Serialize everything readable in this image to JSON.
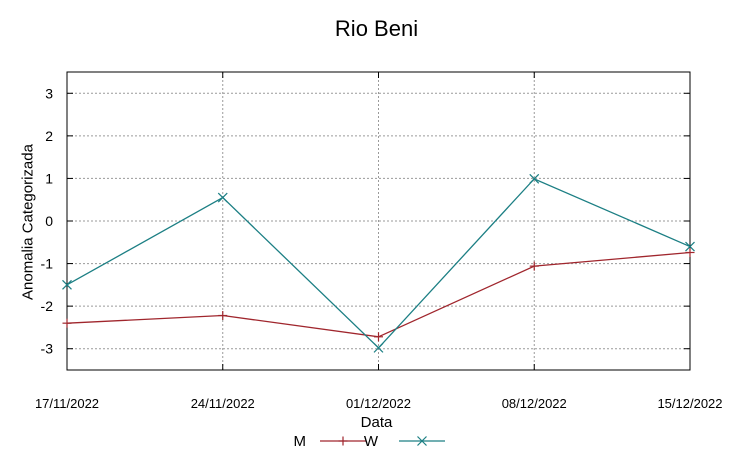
{
  "chart_data": {
    "type": "line",
    "title": "Rio Beni",
    "xlabel": "Data",
    "ylabel": "Anomalia Categorizada",
    "categories": [
      "17/11/2022",
      "24/11/2022",
      "01/12/2022",
      "08/12/2022",
      "15/12/2022"
    ],
    "ylim": [
      -3.5,
      3.5
    ],
    "yticks": [
      "-3",
      "-2",
      "-1",
      "0",
      "1",
      "2",
      "3"
    ],
    "grid": true,
    "legend_position": "bottom",
    "series": [
      {
        "name": "M",
        "color": "#a0262d",
        "marker": "plus",
        "values": [
          -2.4,
          -2.22,
          -2.72,
          -1.06,
          -0.74
        ]
      },
      {
        "name": "W",
        "color": "#1c7f84",
        "marker": "x",
        "values": [
          -1.5,
          0.55,
          -2.98,
          0.99,
          -0.6
        ]
      }
    ]
  }
}
